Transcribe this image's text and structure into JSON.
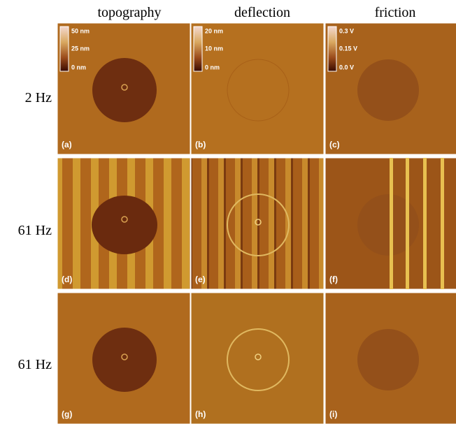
{
  "columns": [
    "topography",
    "deflection",
    "friction"
  ],
  "rows": [
    "2 Hz",
    "61 Hz",
    "61 Hz"
  ],
  "panels": [
    {
      "label": "(a)",
      "scale": [
        "50 nm",
        "25 nm",
        "0 nm"
      ]
    },
    {
      "label": "(b)",
      "scale": [
        "20 nm",
        "10 nm",
        "0 nm"
      ]
    },
    {
      "label": "(c)",
      "scale": [
        "0.3 V",
        "0.15 V",
        "0.0 V"
      ]
    },
    {
      "label": "(d)"
    },
    {
      "label": "(e)"
    },
    {
      "label": "(f)"
    },
    {
      "label": "(g)"
    },
    {
      "label": "(h)"
    },
    {
      "label": "(i)"
    }
  ]
}
